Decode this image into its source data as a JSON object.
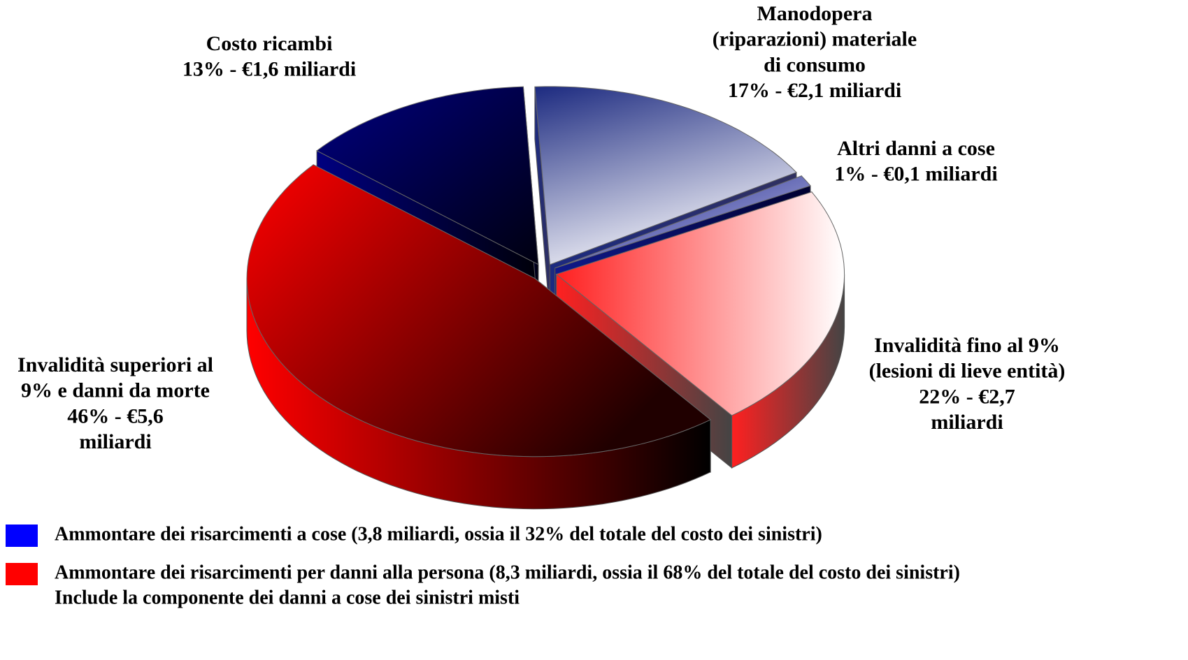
{
  "chart_data": {
    "type": "pie3d",
    "categories": [
      [
        "Costo ricambi"
      ],
      [
        "Manodopera",
        "(riparazioni) materiale",
        "di consumo"
      ],
      [
        "Altri danni a cose"
      ],
      [
        "Invalidità fino al 9%",
        "(lesioni di lieve entità)"
      ],
      [
        "Invalidità superiori al",
        "9% e danni da morte"
      ]
    ],
    "values": [
      13,
      17,
      1,
      22,
      46
    ],
    "value_labels": [
      [
        "13% - €1,6 miliardi"
      ],
      [
        "17% - €2,1 miliardi"
      ],
      [
        "1% - €0,1 miliardi"
      ],
      [
        "22% - €2,7",
        "miliardi"
      ],
      [
        "46% - €5,6",
        "miliardi"
      ]
    ],
    "colors": [
      "#000080",
      "#1c2a80",
      "#101a8a",
      "#ff2020",
      "#ff0000"
    ],
    "legend": [
      {
        "color": "#0000ff",
        "lines": [
          "Ammontare dei risarcimenti a cose (3,8 miliardi, ossia il 32% del totale del costo dei sinistri)"
        ]
      },
      {
        "color": "#ff0000",
        "lines": [
          "Ammontare dei risarcimenti per danni alla persona (8,3 miliardi, ossia il 68% del totale del costo dei sinistri)",
          "Include la componente dei danni a cose dei sinistri misti"
        ]
      }
    ]
  }
}
